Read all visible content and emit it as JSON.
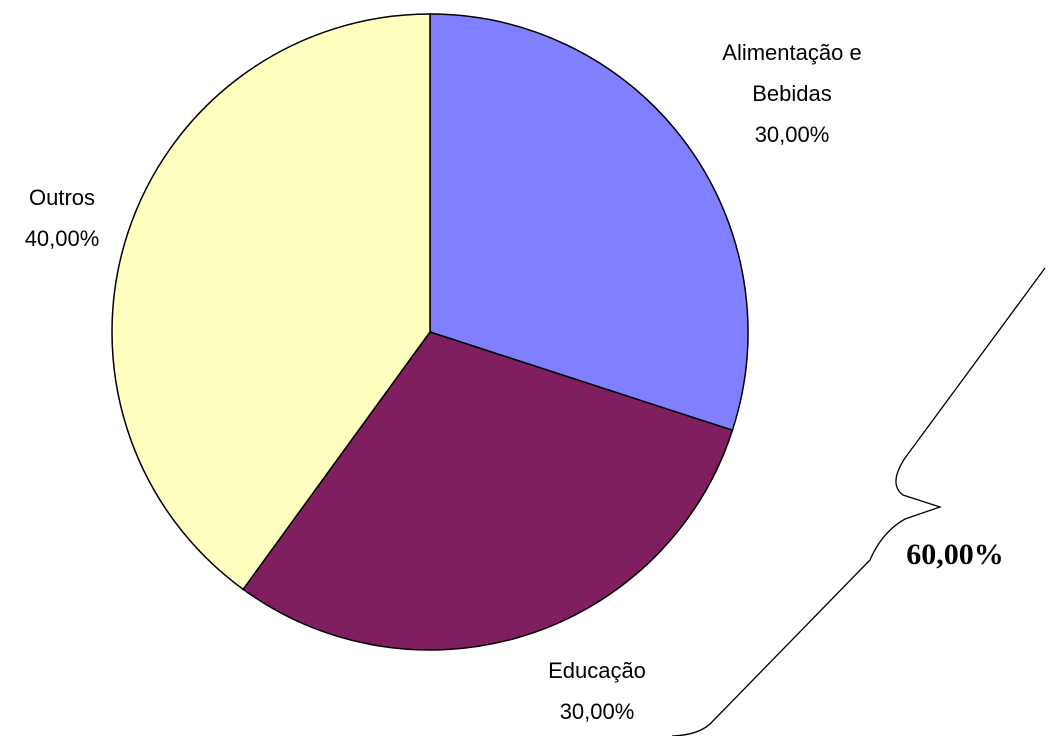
{
  "chart_data": {
    "type": "pie",
    "categories": [
      "Alimentação e Bebidas",
      "Educação",
      "Outros"
    ],
    "values": [
      30,
      30,
      40
    ],
    "value_labels": [
      "30,00%",
      "30,00%",
      "40,00%"
    ],
    "colors": [
      "#8080ff",
      "#7f1f5f",
      "#ffffc0"
    ],
    "annotation": "60,00%"
  }
}
